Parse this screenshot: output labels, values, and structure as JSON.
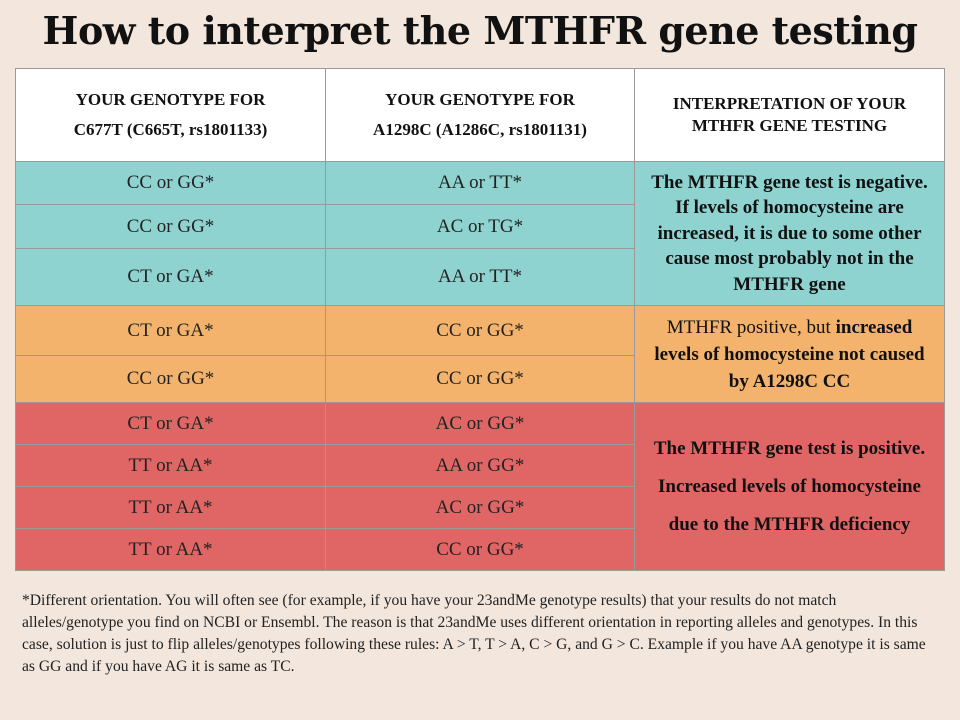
{
  "title": "How to interpret the MTHFR gene testing",
  "table": {
    "headers": {
      "col1_line1": "YOUR GENOTYPE FOR",
      "col1_line2": "C677T (C665T, rs1801133)",
      "col2_line1": "YOUR GENOTYPE FOR",
      "col2_line2": "A1298C (A1286C, rs1801131)",
      "col3": "INTERPRETATION OF YOUR MTHFR GENE TESTING"
    },
    "rows": [
      {
        "c677t": "CC or GG*",
        "a1298c": "AA or TT*"
      },
      {
        "c677t": "CC or GG*",
        "a1298c": "AC or TG*"
      },
      {
        "c677t": "CT or  GA*",
        "a1298c": "AA or TT*"
      },
      {
        "c677t": "CT or GA*",
        "a1298c": "CC or GG*"
      },
      {
        "c677t": "CC or GG*",
        "a1298c": "CC or GG*"
      },
      {
        "c677t": "CT or GA*",
        "a1298c": "AC or GG*"
      },
      {
        "c677t": "TT or AA*",
        "a1298c": "AA or GG*"
      },
      {
        "c677t": "TT or AA*",
        "a1298c": "AC or GG*"
      },
      {
        "c677t": "TT or AA*",
        "a1298c": "CC or GG*"
      }
    ],
    "interpretations": {
      "negative": "The MTHFR gene test is negative. If levels of homocysteine are increased, it is due to some other cause most probably not in the MTHFR gene",
      "positive_partial_lead": "MTHFR positive, but ",
      "positive_partial_bold": "increased levels of homocysteine not caused by A1298C CC",
      "positive": "The MTHFR gene test is positive. Increased levels of homocysteine due to the MTHFR deficiency"
    },
    "colors": {
      "negative": "#8fd3d1",
      "partial": "#f4b36c",
      "positive": "#e06666"
    }
  },
  "footnote": "*Different orientation. You will often see (for example, if you have your 23andMe genotype results) that your results do not match alleles/genotype you find on NCBI or Ensembl. The reason is that 23andMe uses different orientation in reporting alleles and genotypes. In this case, solution is just to flip alleles/genotypes following these rules: A > T, T > A, C > G, and G > C. Example if you have AA genotype it is same as GG and if you have AG it is same as TC."
}
